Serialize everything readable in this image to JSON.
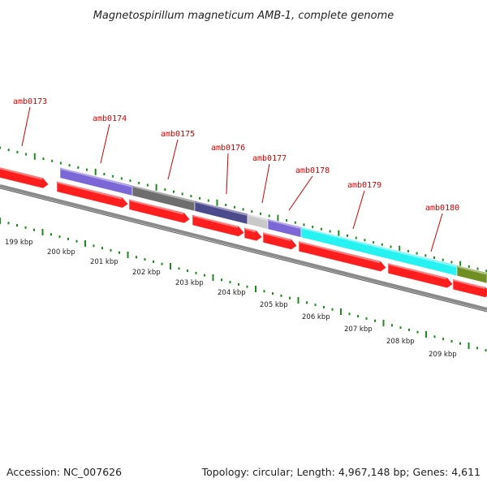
{
  "header": {
    "title": "Magnetospirillum magneticum AMB-1, complete genome"
  },
  "footer": {
    "accession": "Accession: NC_007626",
    "summary": "Topology: circular; Length: 4,967,148 bp; Genes: 4,611"
  },
  "colors": {
    "gene_label": "#d40000",
    "cds": "#ff1e1e",
    "backbone": "#8a8a8a",
    "tick": "#1d8a1d"
  },
  "gene_labels": [
    "amb0173",
    "amb0174",
    "amb0175",
    "amb0176",
    "amb0177",
    "amb0178",
    "amb0179",
    "amb0180"
  ],
  "cog_segment_colors": [
    "#7b68d6",
    "#6e6e6e",
    "#4b4a8c",
    "#c8c8c8",
    "#7b68d6",
    "#27f2f2",
    "#6f8f23"
  ],
  "kbp_labels": [
    "199 kbp",
    "200 kbp",
    "201 kbp",
    "202 kbp",
    "203 kbp",
    "204 kbp",
    "205 kbp",
    "206 kbp",
    "207 kbp",
    "208 kbp",
    "209 kbp"
  ]
}
